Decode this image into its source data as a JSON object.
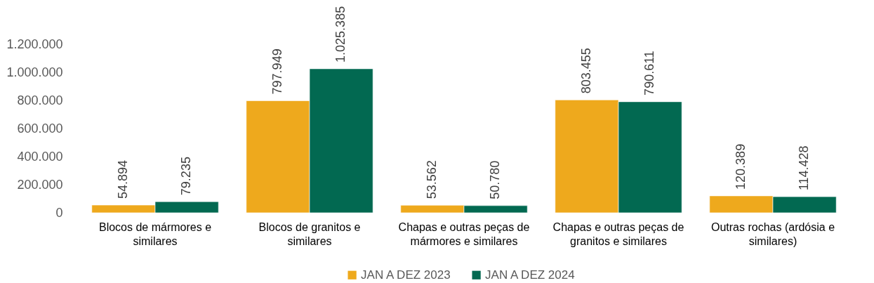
{
  "chart_data": {
    "type": "bar",
    "categories": [
      "Blocos de mármores e similares",
      "Blocos de granitos e similares",
      "Chapas e outras peças de mármores e similares",
      "Chapas e outras peças de granitos e similares",
      "Outras rochas (ardósia e similares)"
    ],
    "series": [
      {
        "name": "JAN A DEZ 2023",
        "color": "#eea91d",
        "values": [
          54894,
          797949,
          53562,
          803455,
          120389
        ],
        "value_labels": [
          "54.894",
          "797.949",
          "53.562",
          "803.455",
          "120.389"
        ]
      },
      {
        "name": "JAN A DEZ 2024",
        "color": "#026951",
        "values": [
          79235,
          1025385,
          50780,
          790611,
          114428
        ],
        "value_labels": [
          "79.235",
          "1.025.385",
          "50.780",
          "790.611",
          "114.428"
        ]
      }
    ],
    "ylim": [
      0,
      1200000
    ],
    "yticks": [
      0,
      {
        "value": 200000,
        "label": "200.000"
      },
      {
        "value": 400000,
        "label": "400.000"
      },
      {
        "value": 600000,
        "label": "600.000"
      },
      {
        "value": 800000,
        "label": "800.000"
      },
      {
        "value": 1000000,
        "label": "1.000.000"
      },
      {
        "value": 1200000,
        "label": "1.200.000"
      }
    ],
    "legend": "bottom"
  }
}
